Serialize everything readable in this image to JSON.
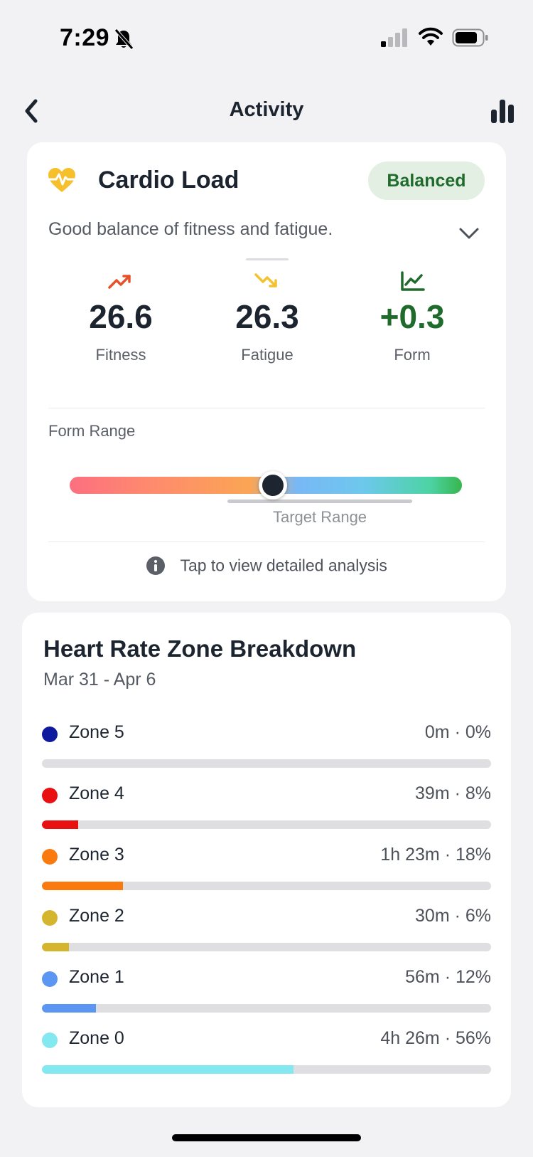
{
  "status_bar": {
    "time": "7:29"
  },
  "nav": {
    "title": "Activity"
  },
  "cardio_load": {
    "title": "Cardio Load",
    "badge": "Balanced",
    "description": "Good balance of fitness and fatigue.",
    "metrics": [
      {
        "value": "26.6",
        "label": "Fitness",
        "icon": "trending-up-icon",
        "color": "#e8502a"
      },
      {
        "value": "26.3",
        "label": "Fatigue",
        "icon": "trending-down-icon",
        "color": "#f2c230"
      },
      {
        "value": "+0.3",
        "label": "Form",
        "icon": "line-chart-icon",
        "color": "#1e6b2c"
      }
    ],
    "form_range": {
      "label": "Form Range",
      "target_label": "Target Range"
    },
    "tap_hint": "Tap to view detailed analysis"
  },
  "hr_zones": {
    "title": "Heart Rate Zone Breakdown",
    "date_range": "Mar 31 - Apr 6",
    "zones": [
      {
        "name": "Zone 5",
        "value": "0m · 0%",
        "percent": 0,
        "color": "#0d1a9e"
      },
      {
        "name": "Zone 4",
        "value": "39m · 8%",
        "percent": 8,
        "color": "#e81010"
      },
      {
        "name": "Zone 3",
        "value": "1h 23m · 18%",
        "percent": 18,
        "color": "#fb7a10"
      },
      {
        "name": "Zone 2",
        "value": "30m · 6%",
        "percent": 6,
        "color": "#d6b52e"
      },
      {
        "name": "Zone 1",
        "value": "56m · 12%",
        "percent": 12,
        "color": "#5a96f2"
      },
      {
        "name": "Zone 0",
        "value": "4h 26m · 56%",
        "percent": 56,
        "color": "#84e8f0"
      }
    ]
  }
}
